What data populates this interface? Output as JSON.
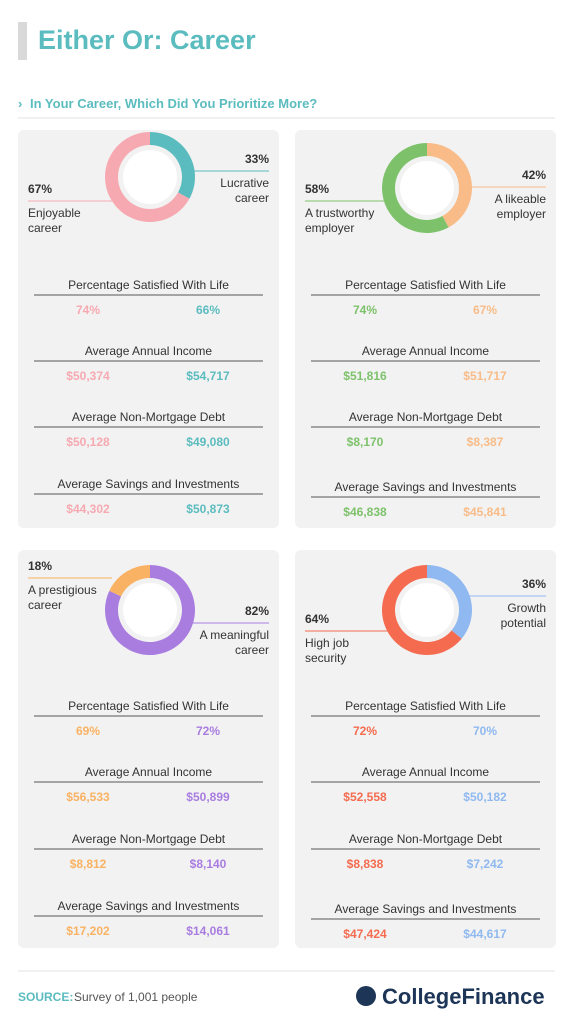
{
  "header": {
    "title": "Either Or: Career",
    "subtitle": "In Your Career, Which Did You Prioritize More?"
  },
  "chart_data": [
    {
      "type": "pie",
      "categories": [
        "Enjoyable career",
        "Lucrative career"
      ],
      "values": [
        67,
        33
      ],
      "value_labels": [
        "67%",
        "33%"
      ],
      "colors": [
        "#f7a9b1",
        "#5bbcbf"
      ],
      "stats": [
        {
          "label": "Percentage Satisfied With Life",
          "values": [
            "74%",
            "66%"
          ]
        },
        {
          "label": "Average Annual Income",
          "values": [
            "$50,374",
            "$54,717"
          ]
        },
        {
          "label": "Average Non-Mortgage Debt",
          "values": [
            "$50,128",
            "$49,080"
          ]
        },
        {
          "label": "Average Savings and Investments",
          "values": [
            "$44,302",
            "$50,873"
          ]
        }
      ]
    },
    {
      "type": "pie",
      "categories": [
        "A trustworthy employer",
        "A likeable employer"
      ],
      "values": [
        58,
        42
      ],
      "value_labels": [
        "58%",
        "42%"
      ],
      "colors": [
        "#7dc26b",
        "#f9bc88"
      ],
      "stats": [
        {
          "label": "Percentage Satisfied With Life",
          "values": [
            "74%",
            "67%"
          ]
        },
        {
          "label": "Average Annual Income",
          "values": [
            "$51,816",
            "$51,717"
          ]
        },
        {
          "label": "Average Non-Mortgage Debt",
          "values": [
            "$8,170",
            "$8,387"
          ]
        },
        {
          "label": "Average Savings and Investments",
          "values": [
            "$46,838",
            "$45,841"
          ]
        }
      ]
    },
    {
      "type": "pie",
      "categories": [
        "A prestigious career",
        "A meaningful career"
      ],
      "values": [
        18,
        82
      ],
      "value_labels": [
        "18%",
        "82%"
      ],
      "colors": [
        "#f9b263",
        "#a97de0"
      ],
      "stats": [
        {
          "label": "Percentage Satisfied With Life",
          "values": [
            "69%",
            "72%"
          ]
        },
        {
          "label": "Average Annual Income",
          "values": [
            "$56,533",
            "$50,899"
          ]
        },
        {
          "label": "Average Non-Mortgage Debt",
          "values": [
            "$8,812",
            "$8,140"
          ]
        },
        {
          "label": "Average Savings and Investments",
          "values": [
            "$17,202",
            "$14,061"
          ]
        }
      ]
    },
    {
      "type": "pie",
      "categories": [
        "High job security",
        "Growth potential"
      ],
      "values": [
        64,
        36
      ],
      "value_labels": [
        "64%",
        "36%"
      ],
      "colors": [
        "#f46b4f",
        "#8fb9f0"
      ],
      "stats": [
        {
          "label": "Percentage Satisfied With Life",
          "values": [
            "72%",
            "70%"
          ]
        },
        {
          "label": "Average Annual Income",
          "values": [
            "$52,558",
            "$50,182"
          ]
        },
        {
          "label": "Average Non-Mortgage Debt",
          "values": [
            "$8,838",
            "$7,242"
          ]
        },
        {
          "label": "Average Savings and Investments",
          "values": [
            "$47,424",
            "$44,617"
          ]
        }
      ]
    }
  ],
  "footer": {
    "source_label": "SOURCE:",
    "source": "Survey of 1,001 people",
    "logo": "CollegeFinance"
  }
}
